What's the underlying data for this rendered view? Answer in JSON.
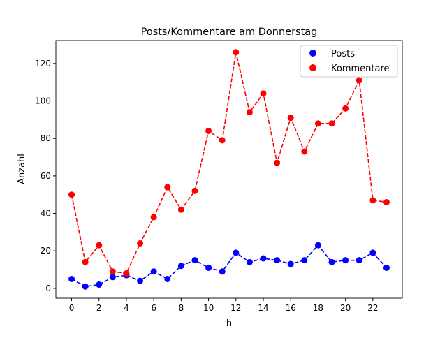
{
  "chart_data": {
    "type": "line",
    "title": "Posts/Kommentare am Donnerstag",
    "xlabel": "h",
    "ylabel": "Anzahl",
    "x": [
      0,
      1,
      2,
      3,
      4,
      5,
      6,
      7,
      8,
      9,
      10,
      11,
      12,
      13,
      14,
      15,
      16,
      17,
      18,
      19,
      20,
      21,
      22,
      23
    ],
    "xticks": [
      0,
      2,
      4,
      6,
      8,
      10,
      12,
      14,
      16,
      18,
      20,
      22
    ],
    "yticks": [
      0,
      20,
      40,
      60,
      80,
      100,
      120
    ],
    "xlim": [
      -1.15,
      24.15
    ],
    "ylim": [
      -5.25,
      132.25
    ],
    "grid": false,
    "legend_position": "top-right",
    "series": [
      {
        "name": "Posts",
        "color": "#0000ff",
        "style": "dashed-with-markers",
        "values": [
          5,
          1,
          2,
          6,
          7,
          4,
          9,
          5,
          12,
          15,
          11,
          9,
          19,
          14,
          16,
          15,
          13,
          15,
          23,
          14,
          15,
          15,
          19,
          11
        ]
      },
      {
        "name": "Kommentare",
        "color": "#ff0000",
        "style": "dashed-with-markers",
        "values": [
          50,
          14,
          23,
          9,
          8,
          24,
          38,
          54,
          42,
          52,
          84,
          79,
          126,
          94,
          104,
          67,
          91,
          73,
          88,
          88,
          96,
          111,
          47,
          46
        ]
      }
    ]
  }
}
